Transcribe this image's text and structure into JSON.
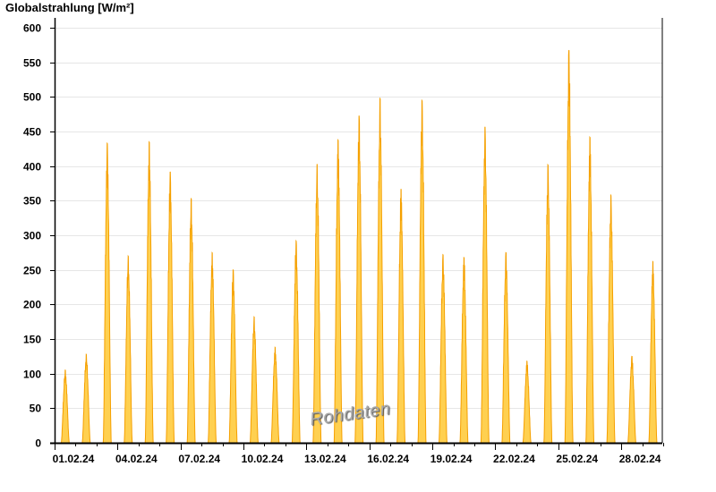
{
  "chart_data": {
    "type": "area",
    "title": "",
    "ylabel": "Globalstrahlung [W/m²]",
    "xlabel": "",
    "ylim": [
      0,
      614
    ],
    "yticks": [
      0,
      50,
      100,
      150,
      200,
      250,
      300,
      350,
      400,
      450,
      500,
      550,
      600
    ],
    "xticks": [
      "01.02.24",
      "04.02.24",
      "07.02.24",
      "10.02.24",
      "13.02.24",
      "16.02.24",
      "19.02.24",
      "22.02.24",
      "25.02.24",
      "28.02.24"
    ],
    "x_range": [
      "01.02.24",
      "29.02.24"
    ],
    "grid": "horizontal",
    "series": [
      {
        "days": [
          "01.02.24",
          "02.02.24",
          "03.02.24",
          "04.02.24",
          "05.02.24",
          "06.02.24",
          "07.02.24",
          "08.02.24",
          "09.02.24",
          "10.02.24",
          "11.02.24",
          "12.02.24",
          "13.02.24",
          "14.02.24",
          "15.02.24",
          "16.02.24",
          "17.02.24",
          "18.02.24",
          "19.02.24",
          "20.02.24",
          "21.02.24",
          "22.02.24",
          "23.02.24",
          "24.02.24",
          "25.02.24",
          "26.02.24",
          "27.02.24",
          "28.02.24",
          "29.02.24"
        ],
        "daily_peak": [
          105,
          128,
          433,
          270,
          435,
          392,
          353,
          275,
          250,
          182,
          138,
          292,
          403,
          438,
          473,
          498,
          367,
          495,
          272,
          268,
          457,
          275,
          118,
          402,
          568,
          442,
          358,
          125,
          262
        ]
      }
    ],
    "colors": {
      "fill": "#ffd050",
      "stroke": "#f5a000",
      "grid": "#e6e6e6"
    },
    "watermark": "Rohdaten"
  }
}
